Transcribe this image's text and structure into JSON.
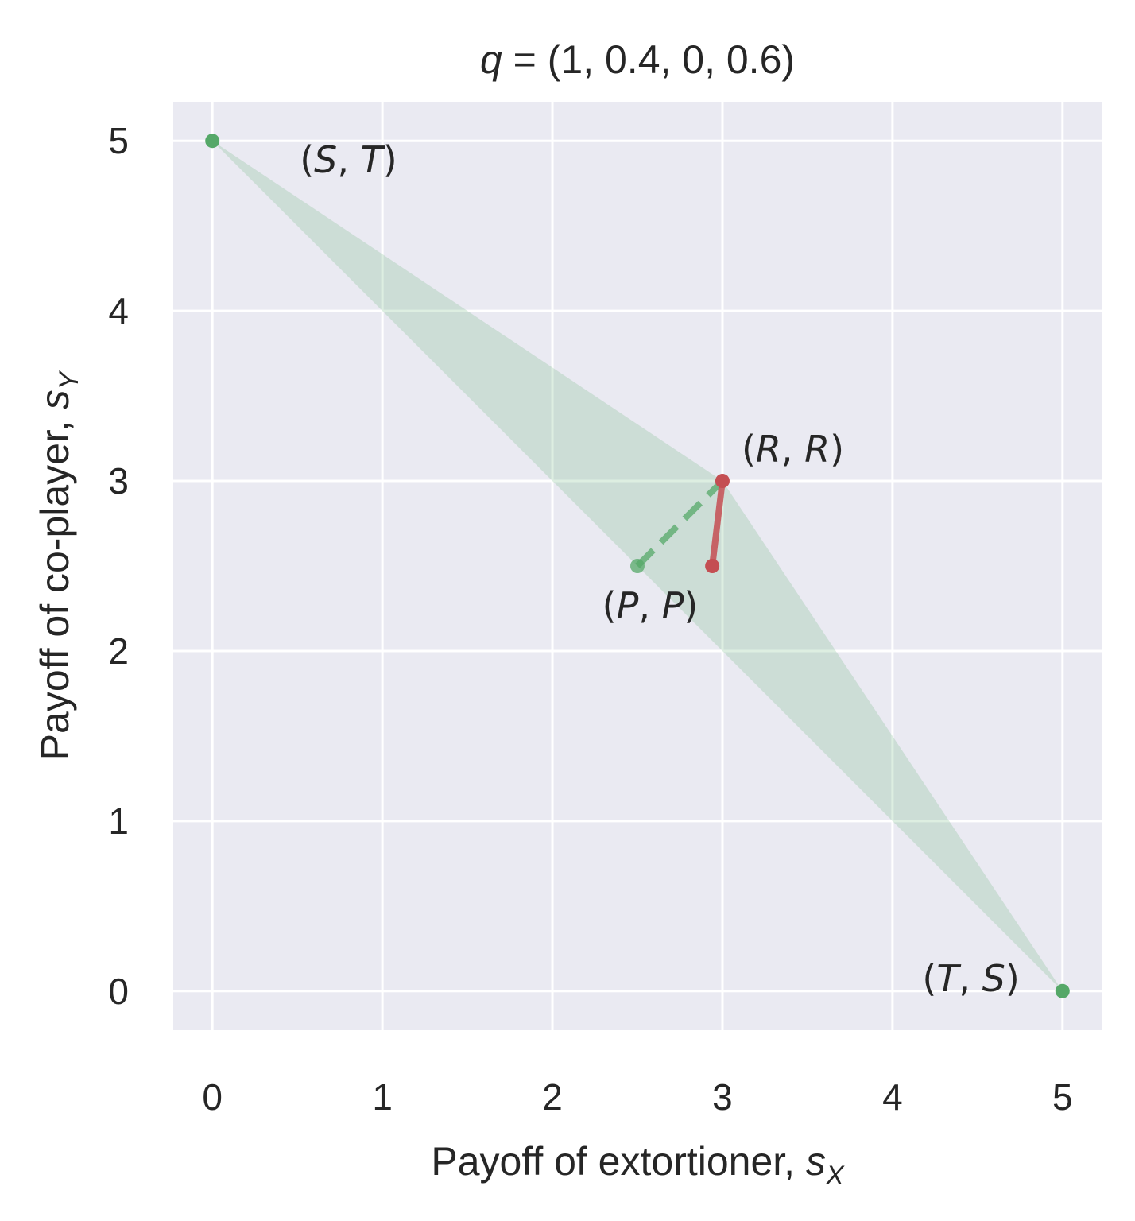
{
  "chart_data": {
    "type": "scatter",
    "title": {
      "var": "q",
      "eq": " = ",
      "value": "(1, 0.4, 0, 0.6)"
    },
    "xlabel": {
      "text": "Payoff of extortioner, ",
      "sym": "s",
      "sub": "X"
    },
    "ylabel": {
      "text": "Payoff of co-player, ",
      "sym": "s",
      "sub": "Y"
    },
    "xlim": [
      -0.23,
      5.23
    ],
    "ylim": [
      -0.23,
      5.23
    ],
    "xticks": [
      0,
      1,
      2,
      3,
      4,
      5
    ],
    "yticks": [
      0,
      1,
      2,
      3,
      4,
      5
    ],
    "grid": true,
    "colors": {
      "background": "#eaeaf2",
      "grid": "#ffffff",
      "region": "#55a868",
      "green": "#55a868",
      "red": "#c44e52"
    },
    "feasible_region": [
      [
        0,
        5
      ],
      [
        3,
        3
      ],
      [
        5,
        0
      ],
      [
        2.5,
        2.5
      ]
    ],
    "corner_points": [
      {
        "label": {
          "a": "S",
          "b": "T"
        },
        "x": 0,
        "y": 5
      },
      {
        "label": {
          "a": "R",
          "b": "R"
        },
        "x": 3,
        "y": 3
      },
      {
        "label": {
          "a": "P",
          "b": "P"
        },
        "x": 2.5,
        "y": 2.5
      },
      {
        "label": {
          "a": "T",
          "b": "S"
        },
        "x": 5,
        "y": 0
      }
    ],
    "green_dashed_segment": [
      [
        2.5,
        2.5
      ],
      [
        3,
        3
      ]
    ],
    "red_segment": [
      [
        2.94,
        2.5
      ],
      [
        3,
        3
      ]
    ]
  }
}
